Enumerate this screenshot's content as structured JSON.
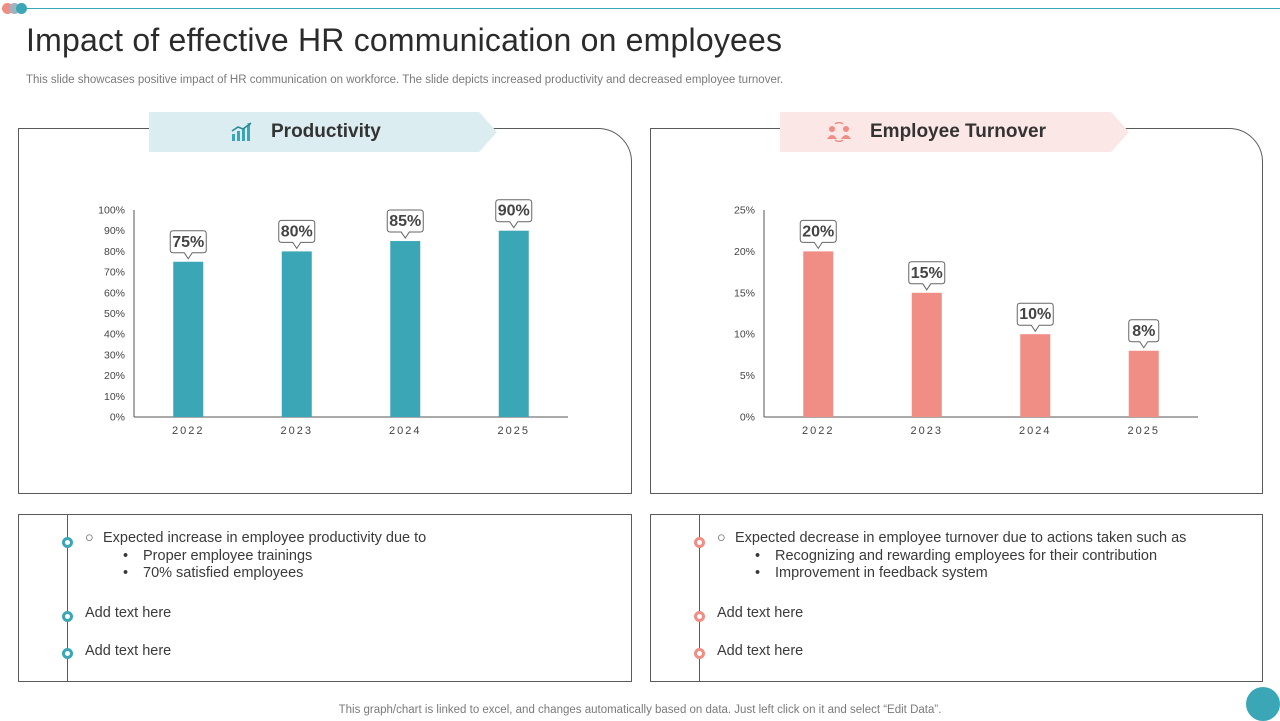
{
  "header": {
    "title": "Impact of effective HR communication on employees",
    "subtitle": "This slide showcases positive impact of HR communication on workforce. The slide depicts increased productivity and decreased employee turnover."
  },
  "productivity": {
    "heading": "Productivity",
    "icon": "productivity-chart-icon",
    "color": "#3aa6b6",
    "bullets": {
      "main": "Expected increase in employee productivity due to",
      "subs": [
        "Proper employee trainings",
        "70% satisfied employees"
      ],
      "extra1": "Add text here",
      "extra2": "Add text here"
    }
  },
  "turnover": {
    "heading": "Employee Turnover",
    "icon": "people-exchange-icon",
    "color": "#f08d84",
    "bullets": {
      "main": "Expected decrease in employee turnover due to actions taken such as",
      "subs": [
        "Recognizing and rewarding employees for their contribution",
        "Improvement in feedback system"
      ],
      "extra1": "Add text here",
      "extra2": "Add text here"
    }
  },
  "footer": "This graph/chart is linked to excel,  and changes automatically based on data. Just left click on it and select “Edit Data”.",
  "chart_data": [
    {
      "type": "bar",
      "title": "Productivity",
      "categories": [
        "2022",
        "2023",
        "2024",
        "2025"
      ],
      "values": [
        75,
        80,
        85,
        90
      ],
      "value_labels": [
        "75%",
        "80%",
        "85%",
        "90%"
      ],
      "ylim": [
        0,
        100
      ],
      "yticks": [
        0,
        10,
        20,
        30,
        40,
        50,
        60,
        70,
        80,
        90,
        100
      ],
      "ytick_labels": [
        "0%",
        "10%",
        "20%",
        "30%",
        "40%",
        "50%",
        "60%",
        "70%",
        "80%",
        "90%",
        "100%"
      ],
      "color": "#3aa6b6",
      "grid": false
    },
    {
      "type": "bar",
      "title": "Employee Turnover",
      "categories": [
        "2022",
        "2023",
        "2024",
        "2025"
      ],
      "values": [
        20,
        15,
        10,
        8
      ],
      "value_labels": [
        "20%",
        "15%",
        "10%",
        "8%"
      ],
      "ylim": [
        0,
        25
      ],
      "yticks": [
        0,
        5,
        10,
        15,
        20,
        25
      ],
      "ytick_labels": [
        "0%",
        "5%",
        "10%",
        "15%",
        "20%",
        "25%"
      ],
      "color": "#f08d84",
      "grid": false
    }
  ]
}
